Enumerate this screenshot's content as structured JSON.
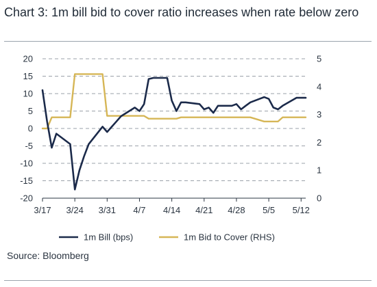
{
  "title": "Chart 3: 1m bill bid to cover ratio increases when rate below zero",
  "source": "Source: Bloomberg",
  "colors": {
    "bill": "#1b2a4a",
    "bid": "#d6b656",
    "grid": "#9aa0a8",
    "text": "#2a3440"
  },
  "chart_data": {
    "type": "line",
    "title": "Chart 3: 1m bill bid to cover ratio increases when rate below zero",
    "xlabel": "",
    "ylabel": "",
    "x_ticks": [
      "3/17",
      "3/24",
      "3/31",
      "4/7",
      "4/14",
      "4/21",
      "4/28",
      "5/5",
      "5/12"
    ],
    "xlim": [
      "3/17",
      "5/13"
    ],
    "ylim": [
      -20,
      20
    ],
    "y_ticks": [
      "-20",
      "-15",
      "-10",
      "-5",
      "0",
      "5",
      "10",
      "15",
      "20"
    ],
    "ylim_right": [
      0,
      5
    ],
    "y_ticks_right": [
      "0",
      "1",
      "2",
      "3",
      "4",
      "5"
    ],
    "grid": "horizontal dashed",
    "legend_position": "bottom",
    "series": [
      {
        "name": "1m Bill (bps)",
        "axis": "left",
        "x": [
          "3/17",
          "3/18",
          "3/19",
          "3/20",
          "3/23",
          "3/24",
          "3/25",
          "3/26",
          "3/27",
          "3/30",
          "3/31",
          "4/1",
          "4/2",
          "4/3",
          "4/6",
          "4/7",
          "4/8",
          "4/9",
          "4/10",
          "4/13",
          "4/14",
          "4/15",
          "4/16",
          "4/17",
          "4/20",
          "4/21",
          "4/22",
          "4/23",
          "4/24",
          "4/27",
          "4/28",
          "4/29",
          "4/30",
          "5/1",
          "5/4",
          "5/5",
          "5/6",
          "5/7",
          "5/8",
          "5/11",
          "5/12",
          "5/13"
        ],
        "values": [
          11,
          2,
          -5.5,
          -1.5,
          -4.5,
          -17.5,
          -12,
          -8,
          -4.5,
          0.5,
          -1,
          0.5,
          2,
          3.5,
          6,
          5,
          7,
          14.2,
          14.5,
          14.5,
          8,
          5,
          7.5,
          7.5,
          7,
          5.5,
          6,
          4.5,
          6.5,
          6.5,
          7,
          5.5,
          6.5,
          7.5,
          9,
          8.5,
          6,
          5.5,
          6.5,
          8.8,
          8.8,
          8.8
        ]
      },
      {
        "name": "1m Bid to Cover (RHS)",
        "axis": "right",
        "x": [
          "3/17",
          "3/18",
          "3/19",
          "3/20",
          "3/23",
          "3/24",
          "3/25",
          "3/26",
          "3/27",
          "3/30",
          "3/31",
          "4/1",
          "4/2",
          "4/3",
          "4/6",
          "4/7",
          "4/8",
          "4/9",
          "4/10",
          "4/13",
          "4/14",
          "4/15",
          "4/16",
          "4/17",
          "4/20",
          "4/21",
          "4/22",
          "4/23",
          "4/24",
          "4/27",
          "4/28",
          "4/29",
          "4/30",
          "5/1",
          "5/4",
          "5/5",
          "5/6",
          "5/7",
          "5/8",
          "5/11",
          "5/12",
          "5/13"
        ],
        "values": [
          2.5,
          2.5,
          2.9,
          2.9,
          2.9,
          4.45,
          4.45,
          4.45,
          4.45,
          4.45,
          2.95,
          2.95,
          2.95,
          2.95,
          2.95,
          2.95,
          2.95,
          2.85,
          2.85,
          2.85,
          2.85,
          2.85,
          2.9,
          2.9,
          2.9,
          2.9,
          2.9,
          2.9,
          2.9,
          2.9,
          2.9,
          2.9,
          2.9,
          2.9,
          2.75,
          2.75,
          2.75,
          2.75,
          2.9,
          2.9,
          2.9,
          2.9
        ]
      }
    ]
  }
}
